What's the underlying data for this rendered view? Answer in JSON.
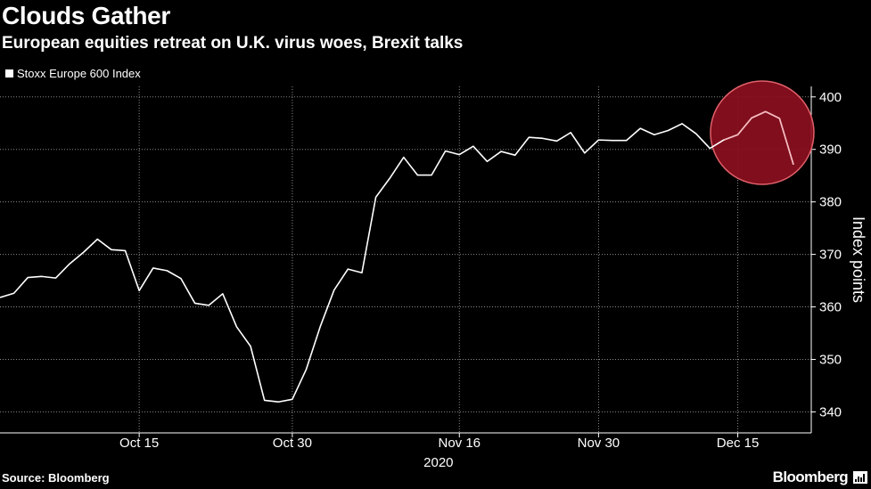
{
  "header": {
    "title": "Clouds Gather",
    "subtitle": "European equities retreat on U.K. virus woes, Brexit talks"
  },
  "footer": {
    "source": "Source: Bloomberg",
    "brand": "Bloomberg"
  },
  "colors": {
    "background": "#000000",
    "line": "#ffffff",
    "grid": "#8a8a8a",
    "highlight_fill": "#8b0f1e",
    "highlight_stroke": "#e0606a"
  },
  "chart_data": {
    "type": "line",
    "title": "Clouds Gather",
    "subtitle": "European equities retreat on U.K. virus woes, Brexit talks",
    "series": [
      {
        "name": "Stoxx Europe 600 Index",
        "values": [
          361.8,
          362.6,
          365.6,
          365.8,
          365.5,
          368.2,
          370.4,
          372.9,
          370.9,
          370.7,
          363.1,
          367.4,
          366.9,
          365.4,
          360.7,
          360.3,
          362.5,
          356.2,
          352.5,
          342.2,
          341.9,
          342.4,
          348.1,
          356.2,
          363.2,
          367.2,
          366.5,
          380.9,
          384.5,
          388.5,
          385.1,
          385.1,
          389.7,
          389.0,
          390.6,
          387.7,
          389.6,
          388.9,
          392.3,
          392.1,
          391.6,
          393.2,
          389.3,
          391.8,
          391.7,
          391.7,
          394.0,
          392.8,
          393.6,
          394.9,
          393.0,
          390.2,
          391.8,
          392.8,
          396.0,
          397.2,
          395.9,
          387.1
        ]
      }
    ],
    "x_ticks": [
      "Oct 15",
      "Oct 30",
      "Nov 16",
      "Nov 30",
      "Dec 15"
    ],
    "x_tick_index": [
      10,
      21,
      33,
      43,
      53
    ],
    "year_label": "2020",
    "xlabel": "",
    "ylabel": "Index points",
    "ylim": [
      336,
      402
    ],
    "y_ticks": [
      340,
      350,
      360,
      370,
      380,
      390,
      400
    ],
    "grid": true,
    "y_axis_side": "right",
    "legend_position": "top-left",
    "annotation": {
      "type": "circle-highlight",
      "from_index": 52,
      "to_index": 57
    }
  }
}
